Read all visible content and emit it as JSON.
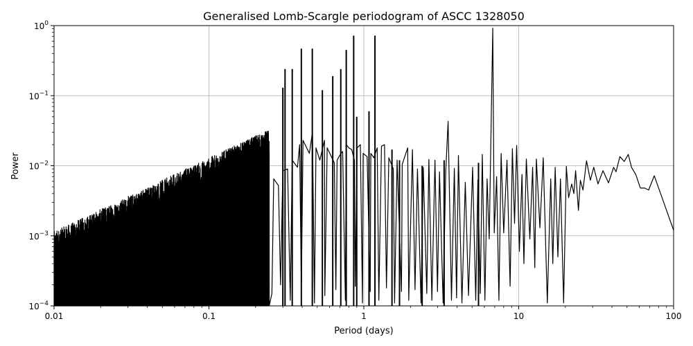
{
  "chart_data": {
    "type": "line",
    "title": "Generalised Lomb-Scargle periodogram of ASCC 1328050",
    "xlabel": "Period (days)",
    "ylabel": "Power",
    "xscale": "log",
    "yscale": "log",
    "xlim": [
      0.01,
      100
    ],
    "ylim": [
      0.0001,
      1
    ],
    "grid": true,
    "x_ticks": [
      {
        "value": 0.01,
        "label": "0.01"
      },
      {
        "value": 0.1,
        "label": "0.1"
      },
      {
        "value": 1,
        "label": "1"
      },
      {
        "value": 10,
        "label": "10"
      },
      {
        "value": 100,
        "label": "100"
      }
    ],
    "y_ticks": [
      {
        "value": 0.0001,
        "base": "10",
        "exp": "−4"
      },
      {
        "value": 0.001,
        "base": "10",
        "exp": "−3"
      },
      {
        "value": 0.01,
        "base": "10",
        "exp": "−2"
      },
      {
        "value": 0.1,
        "base": "10",
        "exp": "−1"
      },
      {
        "value": 1,
        "base": "10",
        "exp": "0"
      }
    ],
    "line_color": "#000000",
    "grid_color": "#b0b0b0",
    "series": [
      {
        "peaks": [
          [
            0.245,
            0.0045
          ],
          [
            0.262,
            0.0065
          ],
          [
            0.281,
            0.0052
          ],
          [
            0.3,
            0.0085
          ],
          [
            0.322,
            0.009
          ],
          [
            0.345,
            0.012
          ],
          [
            0.373,
            0.0095
          ],
          [
            0.385,
            0.02
          ],
          [
            0.405,
            0.023
          ],
          [
            0.445,
            0.015
          ],
          [
            0.466,
            0.03
          ],
          [
            0.491,
            0.018
          ],
          [
            0.52,
            0.012
          ],
          [
            0.557,
            0.023
          ],
          [
            0.58,
            0.018
          ],
          [
            0.645,
            0.011
          ],
          [
            0.672,
            0.012
          ],
          [
            0.698,
            0.014
          ],
          [
            0.73,
            0.016
          ],
          [
            0.77,
            0.02
          ],
          [
            0.8,
            0.018
          ],
          [
            0.835,
            0.017
          ],
          [
            0.87,
            0.012
          ],
          [
            0.905,
            0.018
          ],
          [
            0.95,
            0.02
          ],
          [
            0.99,
            0.015
          ],
          [
            1.05,
            0.0135
          ],
          [
            1.11,
            0.015
          ],
          [
            1.16,
            0.013
          ],
          [
            1.22,
            0.018
          ],
          [
            1.3,
            0.019
          ],
          [
            1.36,
            0.02
          ],
          [
            1.45,
            0.013
          ],
          [
            1.55,
            0.009
          ],
          [
            1.64,
            0.012
          ],
          [
            1.77,
            0.0105
          ],
          [
            1.92,
            0.018
          ],
          [
            2.06,
            0.017
          ],
          [
            2.22,
            0.009
          ],
          [
            2.42,
            0.0095
          ],
          [
            2.63,
            0.0123
          ],
          [
            2.88,
            0.012
          ],
          [
            3.08,
            0.0082
          ],
          [
            3.38,
            0.0083
          ],
          [
            3.5,
            0.043
          ],
          [
            3.84,
            0.0092
          ],
          [
            4.08,
            0.014
          ],
          [
            4.52,
            0.0058
          ],
          [
            5.04,
            0.0095
          ],
          [
            5.45,
            0.0063
          ],
          [
            5.82,
            0.0145
          ],
          [
            6.25,
            0.0065
          ],
          [
            6.8,
            0.92
          ],
          [
            7.2,
            0.007
          ],
          [
            7.7,
            0.015
          ],
          [
            8.4,
            0.012
          ],
          [
            9.1,
            0.0175
          ],
          [
            9.7,
            0.0195
          ],
          [
            10.5,
            0.0075
          ],
          [
            11.2,
            0.0125
          ],
          [
            12.3,
            0.0095
          ],
          [
            13.0,
            0.0125
          ],
          [
            14.4,
            0.013
          ],
          [
            16.1,
            0.0065
          ],
          [
            17.2,
            0.0095
          ],
          [
            18.6,
            0.0065
          ],
          [
            20.3,
            0.0098
          ],
          [
            22.0,
            0.0055
          ],
          [
            23.3,
            0.0085
          ],
          [
            25.0,
            0.0062
          ],
          [
            27.4,
            0.0118
          ],
          [
            30.5,
            0.0095
          ],
          [
            35.0,
            0.0085
          ],
          [
            41.0,
            0.0095
          ],
          [
            45.0,
            0.0135
          ],
          [
            51.0,
            0.0145
          ],
          [
            57.0,
            0.0075
          ],
          [
            65.0,
            0.0048
          ],
          [
            75.0,
            0.0072
          ]
        ],
        "dips": [
          [
            0.255,
            0.00015
          ],
          [
            0.29,
            0.0002
          ],
          [
            0.335,
            0.00012
          ],
          [
            0.395,
            0.00018
          ],
          [
            0.48,
            0.00011
          ],
          [
            0.56,
            0.00014
          ],
          [
            0.66,
            0.00017
          ],
          [
            0.76,
            0.00012
          ],
          [
            0.88,
            0.00019
          ],
          [
            0.98,
            0.00011
          ],
          [
            1.1,
            0.00016
          ],
          [
            1.25,
            0.00012
          ],
          [
            1.4,
            0.00018
          ],
          [
            1.58,
            0.00011
          ],
          [
            1.75,
            0.00016
          ],
          [
            1.95,
            0.00012
          ],
          [
            2.14,
            0.00017
          ],
          [
            2.34,
            0.00011
          ],
          [
            2.55,
            0.00015
          ],
          [
            2.75,
            0.00012
          ],
          [
            2.99,
            0.00016
          ],
          [
            3.25,
            0.00011
          ],
          [
            3.68,
            0.00012
          ],
          [
            3.97,
            0.00013
          ],
          [
            4.3,
            0.00011
          ],
          [
            4.74,
            0.00014
          ],
          [
            5.28,
            0.00012
          ],
          [
            5.65,
            0.00015
          ],
          [
            6.05,
            0.00012
          ],
          [
            6.45,
            0.0009
          ],
          [
            6.95,
            0.0011
          ],
          [
            7.45,
            0.00012
          ],
          [
            8.0,
            0.0011
          ],
          [
            8.8,
            0.00019
          ],
          [
            9.4,
            0.0015
          ],
          [
            10.1,
            0.0006
          ],
          [
            10.8,
            0.0004
          ],
          [
            11.8,
            0.0009
          ],
          [
            12.7,
            0.00035
          ],
          [
            13.7,
            0.0013
          ],
          [
            15.3,
            0.00011
          ],
          [
            16.6,
            0.0004
          ],
          [
            17.9,
            0.0005
          ],
          [
            19.5,
            0.00011
          ],
          [
            21.0,
            0.0035
          ],
          [
            22.7,
            0.004
          ],
          [
            24.3,
            0.0023
          ],
          [
            26.0,
            0.0045
          ],
          [
            29.0,
            0.0062
          ],
          [
            32.5,
            0.0055
          ],
          [
            38.0,
            0.0057
          ],
          [
            42.5,
            0.0082
          ],
          [
            48.0,
            0.0115
          ],
          [
            53.5,
            0.0095
          ],
          [
            61.0,
            0.0048
          ],
          [
            69.0,
            0.0045
          ]
        ],
        "spikes": [
          [
            0.3,
            0.13
          ],
          [
            0.31,
            0.24
          ],
          [
            0.345,
            0.24
          ],
          [
            0.395,
            0.47
          ],
          [
            0.465,
            0.47
          ],
          [
            0.54,
            0.12
          ],
          [
            0.63,
            0.19
          ],
          [
            0.71,
            0.24
          ],
          [
            0.77,
            0.45
          ],
          [
            0.86,
            0.72
          ],
          [
            0.9,
            0.05
          ],
          [
            1.08,
            0.06
          ],
          [
            1.18,
            0.72
          ],
          [
            1.52,
            0.017
          ],
          [
            1.7,
            0.012
          ],
          [
            2.38,
            0.01
          ],
          [
            3.3,
            0.012
          ],
          [
            5.5,
            0.011
          ]
        ]
      }
    ]
  }
}
